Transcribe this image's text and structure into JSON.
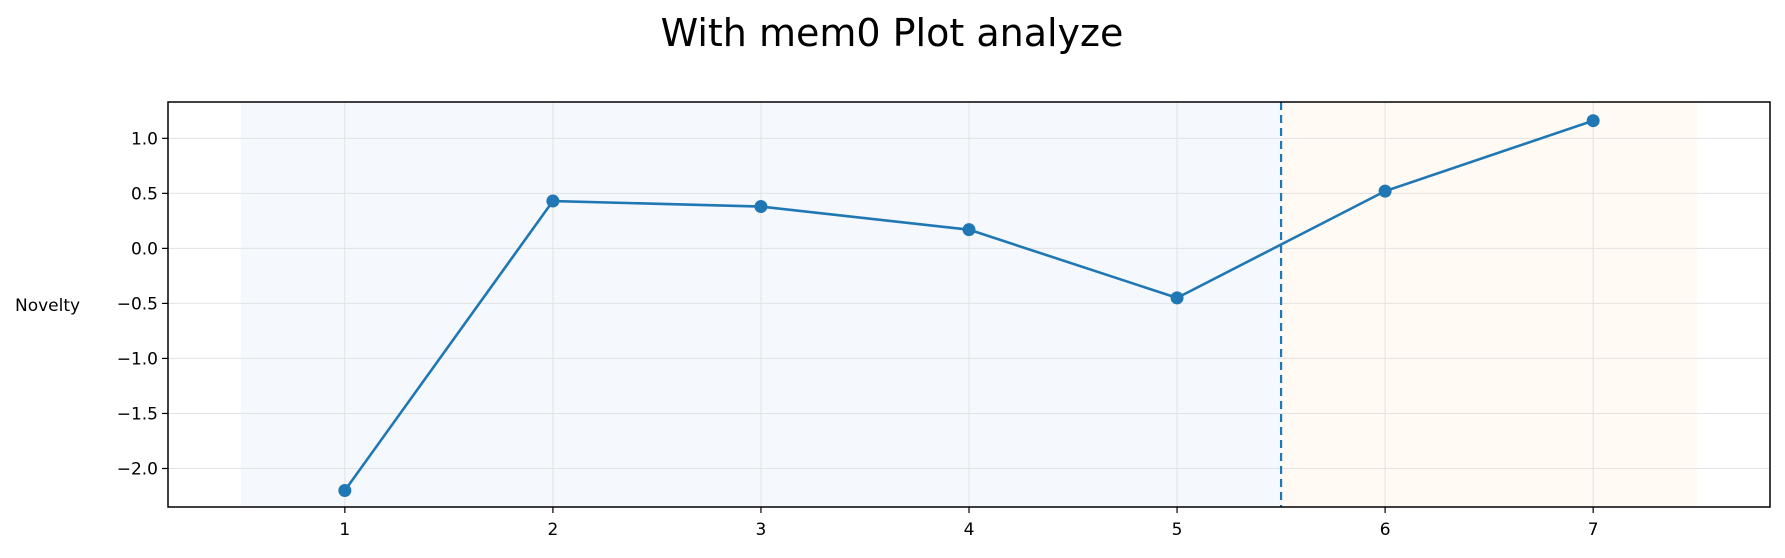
{
  "chart_data": {
    "type": "line",
    "title": "With mem0 Plot analyze",
    "xlabel": "",
    "ylabel": "Novelty",
    "x": [
      1,
      2,
      3,
      4,
      5,
      6,
      7
    ],
    "series": [
      {
        "values": [
          -2.2,
          0.43,
          0.38,
          0.17,
          -0.45,
          0.52,
          1.16
        ]
      }
    ],
    "xlim": [
      0.15,
      7.85
    ],
    "ylim": [
      -2.35,
      1.33
    ],
    "x_ticks": [
      "1",
      "2",
      "3",
      "4",
      "5",
      "6",
      "7"
    ],
    "y_ticks": [
      "1.0",
      "0.5",
      "0.0",
      "−0.5",
      "−1.0",
      "−1.5",
      "−2.0"
    ],
    "y_tick_values": [
      1.0,
      0.5,
      0.0,
      -0.5,
      -1.0,
      -1.5,
      -2.0
    ],
    "vline_x": 5.5,
    "shaded_regions": [
      {
        "from": 0.5,
        "to": 5.5,
        "color": "#f5f8fd"
      },
      {
        "from": 5.5,
        "to": 7.5,
        "color": "#fffaf3"
      }
    ],
    "grid": true,
    "line_color": "#1f77b4"
  }
}
